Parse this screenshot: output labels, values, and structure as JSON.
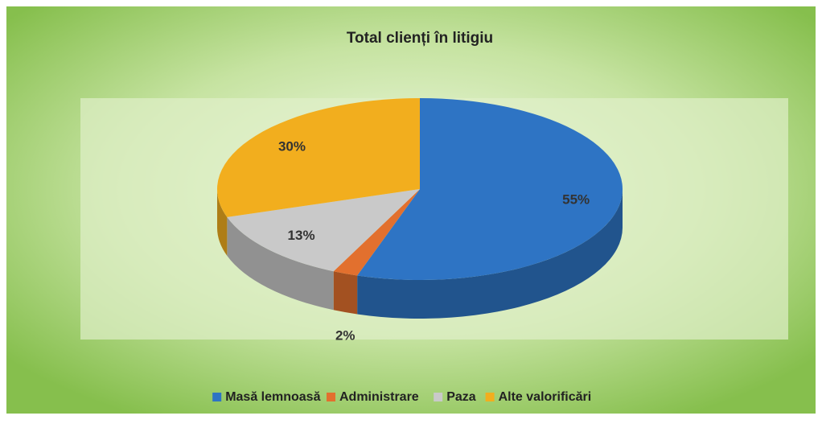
{
  "chart_data": {
    "type": "pie3d",
    "title": "Total clienți în litigiu",
    "categories": [
      "Masă lemnoasă",
      "Administrare",
      "Paza",
      "Alte valorificări"
    ],
    "values": [
      55,
      2,
      13,
      30
    ],
    "value_labels": [
      "55%",
      "2%",
      "13%",
      "30%"
    ],
    "colors": [
      "#2e74c4",
      "#e2702e",
      "#c9c9c9",
      "#f2ae1e"
    ],
    "legend": "bottom"
  }
}
